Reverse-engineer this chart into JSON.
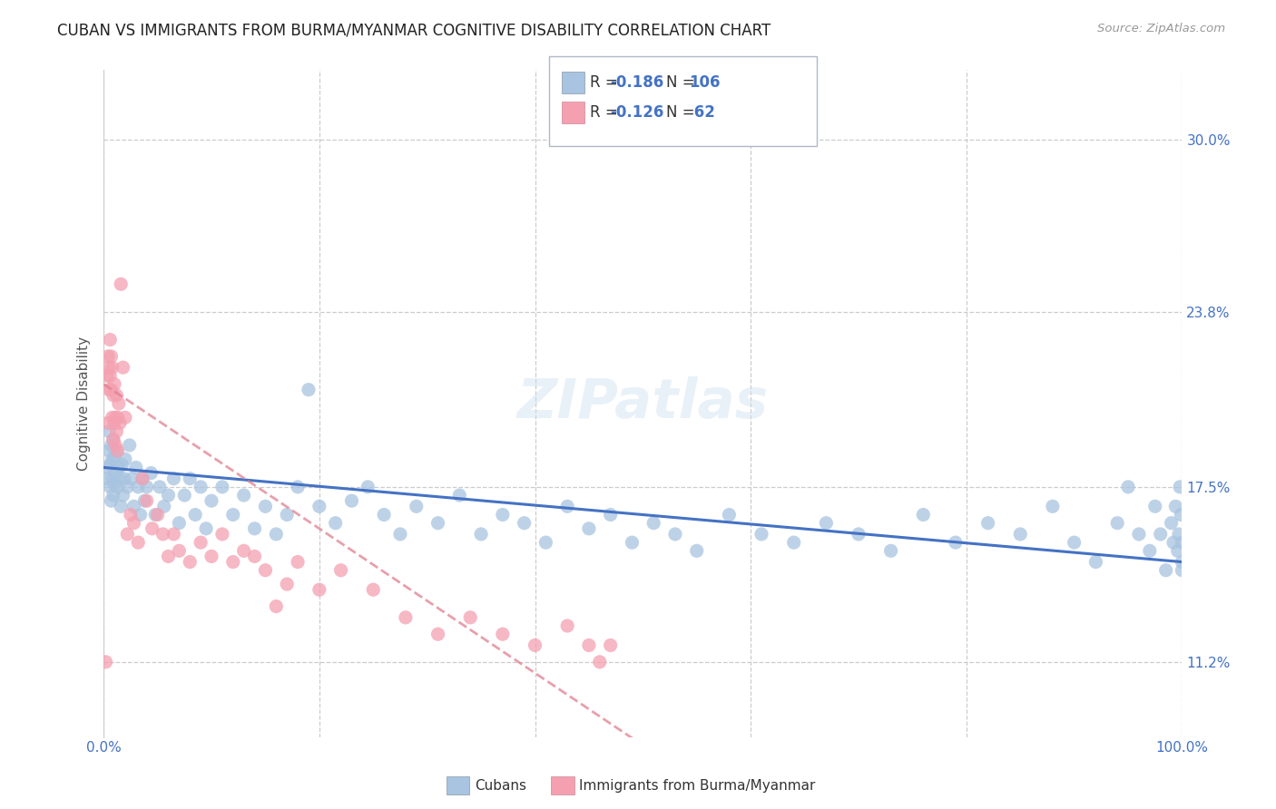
{
  "title": "CUBAN VS IMMIGRANTS FROM BURMA/MYANMAR COGNITIVE DISABILITY CORRELATION CHART",
  "source": "Source: ZipAtlas.com",
  "ylabel": "Cognitive Disability",
  "xlim": [
    0.0,
    1.0
  ],
  "ylim": [
    0.085,
    0.325
  ],
  "yticks": [
    0.112,
    0.175,
    0.238,
    0.3
  ],
  "ytick_labels": [
    "11.2%",
    "17.5%",
    "23.8%",
    "30.0%"
  ],
  "xticks": [
    0.0,
    0.2,
    0.4,
    0.6,
    0.8,
    1.0
  ],
  "xtick_labels": [
    "0.0%",
    "",
    "",
    "",
    "",
    "100.0%"
  ],
  "cubans_color": "#a8c4e0",
  "burma_color": "#f4a0b0",
  "trendline_cubans_color": "#4472c4",
  "trendline_burma_color": "#e08090",
  "background_color": "#ffffff",
  "grid_color": "#cccccc",
  "axis_label_color": "#4472c4",
  "legend_text_color": "#4472c4",
  "cubans_x": [
    0.003,
    0.004,
    0.005,
    0.005,
    0.006,
    0.006,
    0.007,
    0.007,
    0.008,
    0.008,
    0.009,
    0.009,
    0.01,
    0.01,
    0.011,
    0.012,
    0.013,
    0.014,
    0.015,
    0.016,
    0.017,
    0.018,
    0.019,
    0.02,
    0.022,
    0.024,
    0.026,
    0.028,
    0.03,
    0.032,
    0.034,
    0.036,
    0.038,
    0.04,
    0.044,
    0.048,
    0.052,
    0.056,
    0.06,
    0.065,
    0.07,
    0.075,
    0.08,
    0.085,
    0.09,
    0.095,
    0.1,
    0.11,
    0.12,
    0.13,
    0.14,
    0.15,
    0.16,
    0.17,
    0.18,
    0.19,
    0.2,
    0.215,
    0.23,
    0.245,
    0.26,
    0.275,
    0.29,
    0.31,
    0.33,
    0.35,
    0.37,
    0.39,
    0.41,
    0.43,
    0.45,
    0.47,
    0.49,
    0.51,
    0.53,
    0.55,
    0.58,
    0.61,
    0.64,
    0.67,
    0.7,
    0.73,
    0.76,
    0.79,
    0.82,
    0.85,
    0.88,
    0.9,
    0.92,
    0.94,
    0.95,
    0.96,
    0.97,
    0.975,
    0.98,
    0.985,
    0.99,
    0.992,
    0.994,
    0.996,
    0.997,
    0.998,
    0.999,
    1.0,
    1.0,
    1.0
  ],
  "cubans_y": [
    0.182,
    0.178,
    0.195,
    0.188,
    0.183,
    0.175,
    0.19,
    0.17,
    0.185,
    0.178,
    0.192,
    0.172,
    0.186,
    0.176,
    0.18,
    0.188,
    0.175,
    0.182,
    0.178,
    0.168,
    0.183,
    0.172,
    0.178,
    0.185,
    0.175,
    0.19,
    0.178,
    0.168,
    0.182,
    0.175,
    0.165,
    0.178,
    0.17,
    0.175,
    0.18,
    0.165,
    0.175,
    0.168,
    0.172,
    0.178,
    0.162,
    0.172,
    0.178,
    0.165,
    0.175,
    0.16,
    0.17,
    0.175,
    0.165,
    0.172,
    0.16,
    0.168,
    0.158,
    0.165,
    0.175,
    0.21,
    0.168,
    0.162,
    0.17,
    0.175,
    0.165,
    0.158,
    0.168,
    0.162,
    0.172,
    0.158,
    0.165,
    0.162,
    0.155,
    0.168,
    0.16,
    0.165,
    0.155,
    0.162,
    0.158,
    0.152,
    0.165,
    0.158,
    0.155,
    0.162,
    0.158,
    0.152,
    0.165,
    0.155,
    0.162,
    0.158,
    0.168,
    0.155,
    0.148,
    0.162,
    0.175,
    0.158,
    0.152,
    0.168,
    0.158,
    0.145,
    0.162,
    0.155,
    0.168,
    0.152,
    0.158,
    0.175,
    0.165,
    0.155,
    0.148,
    0.145
  ],
  "burma_x": [
    0.002,
    0.003,
    0.004,
    0.004,
    0.005,
    0.005,
    0.006,
    0.006,
    0.007,
    0.007,
    0.008,
    0.008,
    0.009,
    0.009,
    0.01,
    0.01,
    0.011,
    0.011,
    0.012,
    0.012,
    0.013,
    0.013,
    0.014,
    0.015,
    0.016,
    0.018,
    0.02,
    0.022,
    0.025,
    0.028,
    0.032,
    0.036,
    0.04,
    0.045,
    0.05,
    0.055,
    0.06,
    0.065,
    0.07,
    0.08,
    0.09,
    0.1,
    0.11,
    0.12,
    0.13,
    0.14,
    0.15,
    0.16,
    0.17,
    0.18,
    0.2,
    0.22,
    0.25,
    0.28,
    0.31,
    0.34,
    0.37,
    0.4,
    0.43,
    0.45,
    0.46,
    0.47
  ],
  "burma_y": [
    0.112,
    0.215,
    0.222,
    0.198,
    0.21,
    0.218,
    0.228,
    0.215,
    0.21,
    0.222,
    0.2,
    0.218,
    0.192,
    0.208,
    0.198,
    0.212,
    0.19,
    0.2,
    0.195,
    0.208,
    0.188,
    0.2,
    0.205,
    0.198,
    0.248,
    0.218,
    0.2,
    0.158,
    0.165,
    0.162,
    0.155,
    0.178,
    0.17,
    0.16,
    0.165,
    0.158,
    0.15,
    0.158,
    0.152,
    0.148,
    0.155,
    0.15,
    0.158,
    0.148,
    0.152,
    0.15,
    0.145,
    0.132,
    0.14,
    0.148,
    0.138,
    0.145,
    0.138,
    0.128,
    0.122,
    0.128,
    0.122,
    0.118,
    0.125,
    0.118,
    0.112,
    0.118
  ],
  "trendline_cubans_x0": 0.0,
  "trendline_cubans_y0": 0.182,
  "trendline_cubans_x1": 1.0,
  "trendline_cubans_y1": 0.148,
  "trendline_burma_x0": 0.0,
  "trendline_burma_y0": 0.212,
  "trendline_burma_x1": 0.5,
  "trendline_burma_y1": 0.082
}
